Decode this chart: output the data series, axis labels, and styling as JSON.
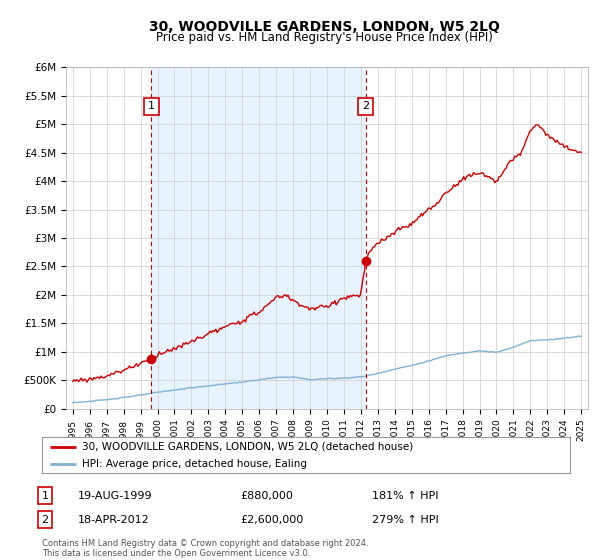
{
  "title": "30, WOODVILLE GARDENS, LONDON, W5 2LQ",
  "subtitle": "Price paid vs. HM Land Registry's House Price Index (HPI)",
  "ylim": [
    0,
    6000000
  ],
  "yticks": [
    0,
    500000,
    1000000,
    1500000,
    2000000,
    2500000,
    3000000,
    3500000,
    4000000,
    4500000,
    5000000,
    5500000,
    6000000
  ],
  "ytick_labels": [
    "£0",
    "£500K",
    "£1M",
    "£1.5M",
    "£2M",
    "£2.5M",
    "£3M",
    "£3.5M",
    "£4M",
    "£4.5M",
    "£5M",
    "£5.5M",
    "£6M"
  ],
  "xlim_start": 1994.6,
  "xlim_end": 2025.4,
  "background_color": "#ffffff",
  "grid_color": "#cccccc",
  "sale1_year": 1999.63,
  "sale1_price": 880000,
  "sale2_year": 2012.29,
  "sale2_price": 2600000,
  "sale_color": "#cc0000",
  "hpi_color": "#7fb3d3",
  "shade_color": "#ddeeff",
  "legend_label_red": "30, WOODVILLE GARDENS, LONDON, W5 2LQ (detached house)",
  "legend_label_blue": "HPI: Average price, detached house, Ealing",
  "annotation1_date": "19-AUG-1999",
  "annotation1_price": "£880,000",
  "annotation1_hpi": "181% ↑ HPI",
  "annotation2_date": "18-APR-2012",
  "annotation2_price": "£2,600,000",
  "annotation2_hpi": "279% ↑ HPI",
  "footer": "Contains HM Land Registry data © Crown copyright and database right 2024.\nThis data is licensed under the Open Government Licence v3.0."
}
